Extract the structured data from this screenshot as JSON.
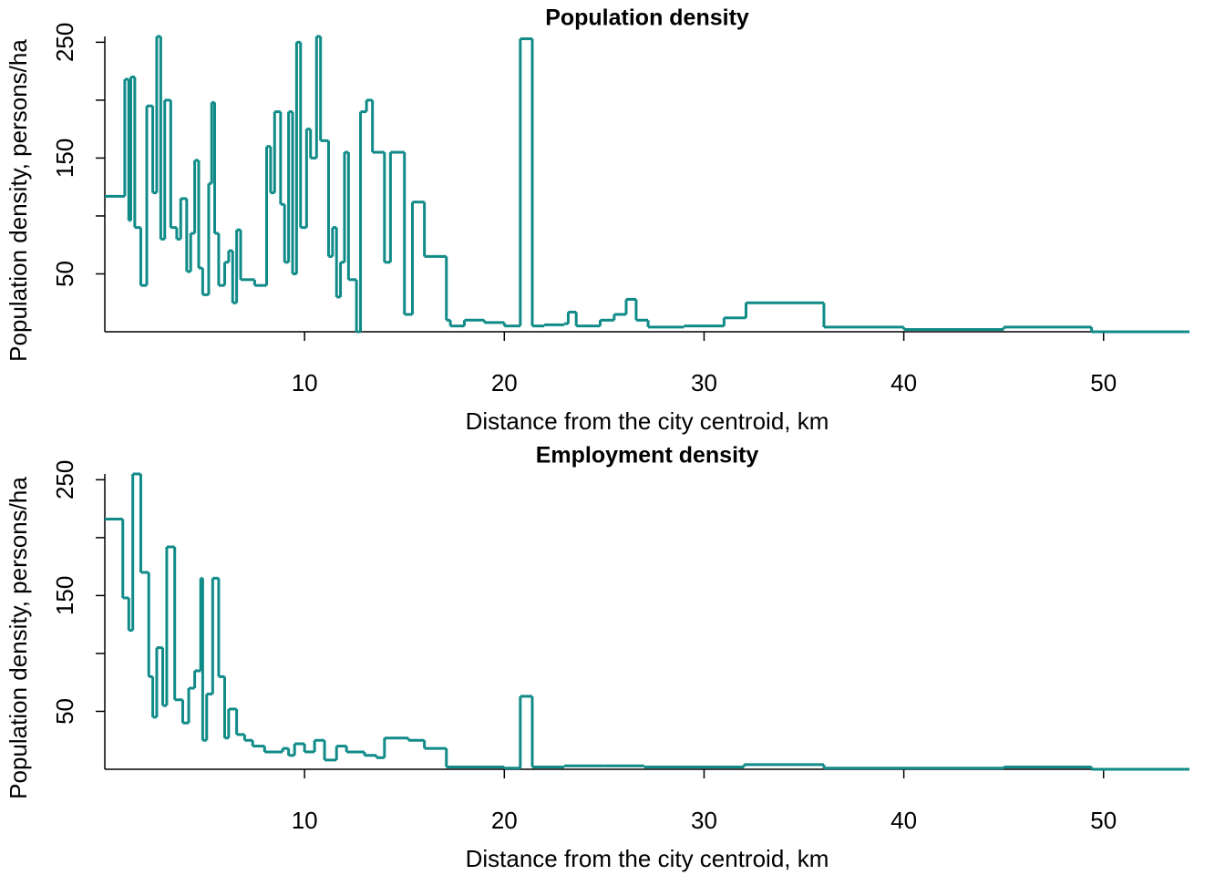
{
  "chart_data": [
    {
      "type": "step",
      "title": "Population density",
      "xlabel": "Distance from the city centroid, km",
      "ylabel": "Population density, persons/ha",
      "color": "#108b88",
      "xlim": [
        0,
        54.3
      ],
      "ylim": [
        0,
        255
      ],
      "xticks": [
        10,
        20,
        30,
        40,
        50
      ],
      "yticks": [
        50,
        150,
        250
      ],
      "yticks_minor": [
        100,
        200
      ],
      "x": [
        0,
        1,
        1.2,
        1.3,
        1.5,
        1.8,
        2.1,
        2.4,
        2.6,
        2.8,
        3,
        3.3,
        3.6,
        3.8,
        4.1,
        4.3,
        4.5,
        4.7,
        4.9,
        5.2,
        5.35,
        5.5,
        5.7,
        6,
        6.2,
        6.4,
        6.6,
        6.8,
        7.5,
        8.1,
        8.3,
        8.5,
        8.8,
        9,
        9.2,
        9.4,
        9.6,
        9.8,
        10.1,
        10.3,
        10.6,
        10.8,
        11.2,
        11.4,
        11.6,
        11.8,
        12,
        12.2,
        12.6,
        12.8,
        13.1,
        13.4,
        14,
        14.3,
        15,
        15.4,
        16,
        17.1,
        17.3,
        18,
        19,
        20,
        20.8,
        21.4,
        22,
        23,
        23.2,
        23.6,
        24.8,
        25.5,
        26.1,
        26.6,
        27.2,
        29,
        31,
        32.1,
        36,
        40,
        45,
        49.4
      ],
      "values": [
        117,
        218,
        96,
        220,
        90,
        40,
        195,
        120,
        255,
        80,
        200,
        90,
        80,
        115,
        52,
        85,
        148,
        55,
        32,
        128,
        198,
        85,
        40,
        60,
        70,
        25,
        88,
        45,
        40,
        160,
        120,
        190,
        110,
        60,
        190,
        50,
        250,
        90,
        175,
        150,
        255,
        165,
        65,
        90,
        30,
        60,
        155,
        45,
        0,
        190,
        200,
        155,
        60,
        155,
        15,
        112,
        65,
        10,
        5,
        10,
        8,
        5,
        253,
        5,
        6,
        7,
        17,
        5,
        10,
        15,
        28,
        10,
        4,
        5,
        12,
        25,
        4,
        2,
        4,
        0
      ]
    },
    {
      "type": "step",
      "title": "Employment density",
      "xlabel": "Distance from the city centroid, km",
      "ylabel": "Population density, persons/ha",
      "color": "#108b88",
      "xlim": [
        0,
        54.3
      ],
      "ylim": [
        0,
        255
      ],
      "xticks": [
        10,
        20,
        30,
        40,
        50
      ],
      "yticks": [
        50,
        150,
        250
      ],
      "yticks_minor": [
        100,
        200
      ],
      "x": [
        0,
        0.9,
        1.2,
        1.4,
        1.8,
        2.2,
        2.4,
        2.6,
        2.9,
        3.1,
        3.5,
        3.9,
        4.2,
        4.5,
        4.8,
        4.9,
        5.1,
        5.4,
        5.7,
        6,
        6.2,
        6.6,
        7,
        7.4,
        8,
        8.9,
        9.2,
        9.5,
        10,
        10.5,
        11,
        11.6,
        12.1,
        13,
        13.6,
        14,
        15.2,
        16,
        17.1,
        20,
        20.8,
        21.4,
        23,
        25,
        27,
        32,
        36,
        45,
        49.4
      ],
      "values": [
        216,
        148,
        120,
        255,
        170,
        80,
        45,
        105,
        55,
        192,
        60,
        40,
        70,
        85,
        165,
        25,
        65,
        165,
        80,
        27,
        52,
        30,
        25,
        20,
        15,
        18,
        12,
        22,
        15,
        25,
        8,
        20,
        15,
        12,
        10,
        27,
        25,
        18,
        2,
        1,
        63,
        2,
        3,
        3,
        2,
        4,
        1,
        2,
        0
      ]
    }
  ]
}
